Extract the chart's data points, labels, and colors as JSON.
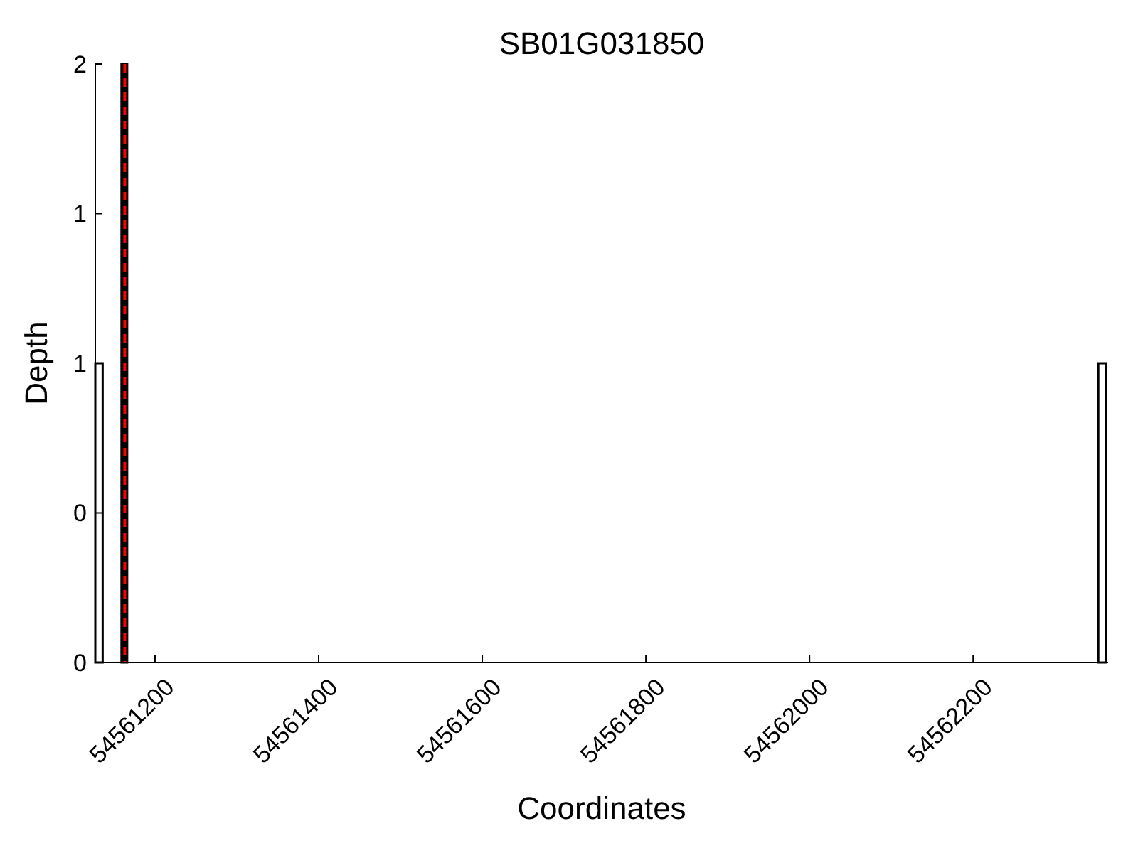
{
  "chart_data": {
    "type": "histogram",
    "title": "SB01G031850",
    "xlabel": "Coordinates",
    "ylabel": "Depth",
    "bins": [
      54561127,
      54561136,
      54561159,
      54561166,
      54562353,
      54562362
    ],
    "values": [
      1,
      0,
      2,
      0,
      1
    ],
    "colors": [
      "#ffffff",
      "#ffffff",
      "#000000",
      "#ffffff",
      "#ffffff"
    ],
    "xlim": [
      54561127,
      54562365
    ],
    "xticks": [
      54561200,
      54561400,
      54561600,
      54561800,
      54562000,
      54562200
    ],
    "ylim": [
      0,
      2
    ],
    "yticks": [
      0,
      {
        "value": 0.5,
        "label": "0"
      },
      1,
      {
        "value": 1.5,
        "label": "1"
      },
      2
    ],
    "ref_lines": [
      {
        "axis": "x",
        "value": 54561163,
        "color": "#ff0000",
        "line_style": "dashed"
      }
    ],
    "grid": false
  }
}
